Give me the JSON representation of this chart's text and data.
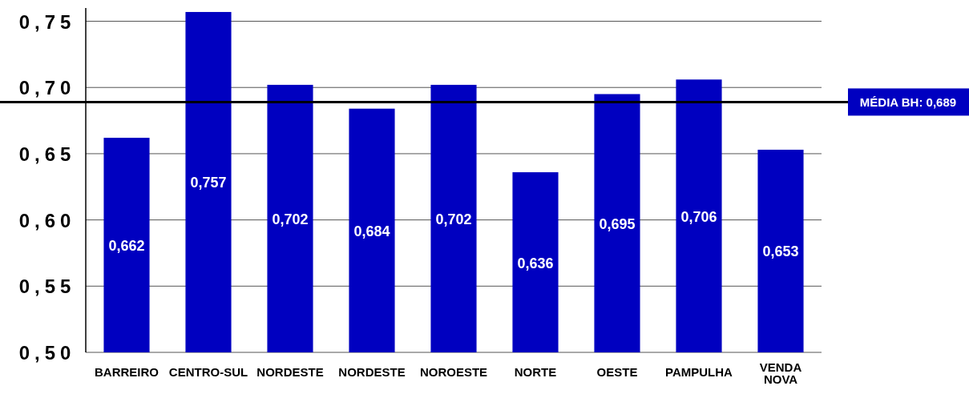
{
  "chart_data": {
    "type": "bar",
    "categories": [
      "BARREIRO",
      "CENTRO-SUL",
      "NORDESTE",
      "NORDESTE",
      "NOROESTE",
      "NORTE",
      "OESTE",
      "PAMPULHA",
      "VENDA NOVA"
    ],
    "values": [
      0.662,
      0.757,
      0.702,
      0.684,
      0.702,
      0.636,
      0.695,
      0.706,
      0.653
    ],
    "value_labels": [
      "0,662",
      "0,757",
      "0,702",
      "0,684",
      "0,702",
      "0,636",
      "0,695",
      "0,706",
      "0,653"
    ],
    "color": "#0000c0",
    "ylim": [
      0.5,
      0.76
    ],
    "yticks": [
      {
        "value": 0.5,
        "label": "0,50"
      },
      {
        "value": 0.55,
        "label": "0,55"
      },
      {
        "value": 0.6,
        "label": "0,60"
      },
      {
        "value": 0.65,
        "label": "0,65"
      },
      {
        "value": 0.7,
        "label": "0,70"
      },
      {
        "value": 0.75,
        "label": "0,75"
      }
    ],
    "grid": "y",
    "ref_lines": [
      {
        "axis": "y",
        "value": 0.689,
        "label": "MÉDIA BH: 0,689",
        "color": "#000000"
      }
    ]
  }
}
